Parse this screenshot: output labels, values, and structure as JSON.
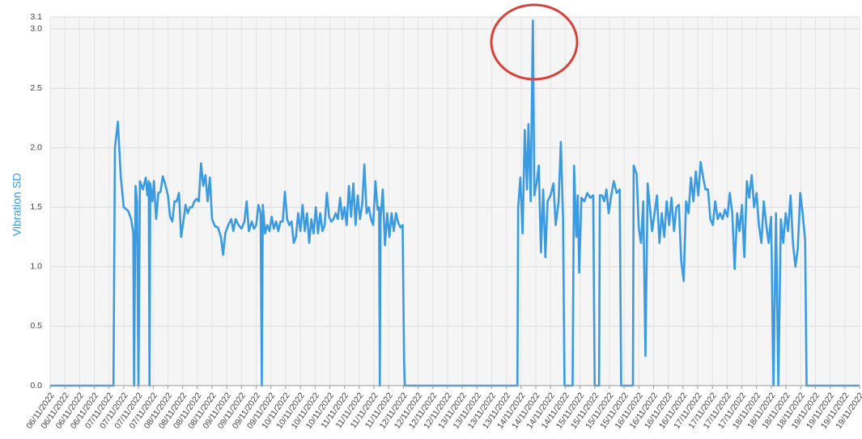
{
  "chart_data": {
    "type": "line",
    "y_label": "Vibration SD",
    "xlim": [
      0,
      55
    ],
    "ylim": [
      0,
      3.1
    ],
    "yticks": [
      {
        "value": 0,
        "label": "0.0"
      },
      0.5,
      {
        "value": 1,
        "label": "1.0"
      },
      1.5,
      {
        "value": 2,
        "label": "2.0"
      },
      2.5,
      {
        "value": 3,
        "label": "3.0"
      },
      3.1
    ],
    "xticks": [
      {
        "value": 0,
        "label": "06/11/2022"
      },
      {
        "value": 1,
        "label": "06/11/2022"
      },
      {
        "value": 2,
        "label": "06/11/2022"
      },
      {
        "value": 3,
        "label": "06/11/2022"
      },
      {
        "value": 4,
        "label": "07/11/2022"
      },
      {
        "value": 5,
        "label": "07/11/2022"
      },
      {
        "value": 6,
        "label": "07/11/2022"
      },
      {
        "value": 7,
        "label": "07/11/2022"
      },
      {
        "value": 8,
        "label": "08/11/2022"
      },
      {
        "value": 9,
        "label": "08/11/2022"
      },
      {
        "value": 10,
        "label": "08/11/2022"
      },
      {
        "value": 11,
        "label": "08/11/2022"
      },
      {
        "value": 12,
        "label": "09/11/2022"
      },
      {
        "value": 13,
        "label": "09/11/2022"
      },
      {
        "value": 14,
        "label": "09/11/2022"
      },
      {
        "value": 15,
        "label": "09/11/2022"
      },
      {
        "value": 16,
        "label": "10/11/2022"
      },
      {
        "value": 17,
        "label": "10/11/2022"
      },
      {
        "value": 18,
        "label": "10/11/2022"
      },
      {
        "value": 19,
        "label": "10/11/2022"
      },
      {
        "value": 20,
        "label": "11/11/2022"
      },
      {
        "value": 21,
        "label": "11/11/2022"
      },
      {
        "value": 22,
        "label": "11/11/2022"
      },
      {
        "value": 23,
        "label": "11/11/2022"
      },
      {
        "value": 24,
        "label": "12/11/2022"
      },
      {
        "value": 25,
        "label": "12/11/2022"
      },
      {
        "value": 26,
        "label": "12/11/2022"
      },
      {
        "value": 27,
        "label": "12/11/2022"
      },
      {
        "value": 28,
        "label": "13/11/2022"
      },
      {
        "value": 29,
        "label": "13/11/2022"
      },
      {
        "value": 30,
        "label": "13/11/2022"
      },
      {
        "value": 31,
        "label": "13/11/2022"
      },
      {
        "value": 32,
        "label": "14/11/2022"
      },
      {
        "value": 33,
        "label": "14/11/2022"
      },
      {
        "value": 34,
        "label": "14/11/2022"
      },
      {
        "value": 35,
        "label": "14/11/2022"
      },
      {
        "value": 36,
        "label": "15/11/2022"
      },
      {
        "value": 37,
        "label": "15/11/2022"
      },
      {
        "value": 38,
        "label": "15/11/2022"
      },
      {
        "value": 39,
        "label": "15/11/2022"
      },
      {
        "value": 40,
        "label": "16/11/2022"
      },
      {
        "value": 41,
        "label": "16/11/2022"
      },
      {
        "value": 42,
        "label": "16/11/2022"
      },
      {
        "value": 43,
        "label": "16/11/2022"
      },
      {
        "value": 44,
        "label": "17/11/2022"
      },
      {
        "value": 45,
        "label": "17/11/2022"
      },
      {
        "value": 46,
        "label": "17/11/2022"
      },
      {
        "value": 47,
        "label": "17/11/2022"
      },
      {
        "value": 48,
        "label": "18/11/2022"
      },
      {
        "value": 49,
        "label": "18/11/2022"
      },
      {
        "value": 50,
        "label": "18/11/2022"
      },
      {
        "value": 51,
        "label": "18/11/2022"
      },
      {
        "value": 52,
        "label": "19/11/2022"
      },
      {
        "value": 53,
        "label": "19/11/2022"
      },
      {
        "value": 54,
        "label": "19/11/2022"
      },
      {
        "value": 55,
        "label": "19/11/2022"
      }
    ],
    "grid": true,
    "series": [
      {
        "color": "#3b9be0",
        "x": [
          0,
          4.3,
          4.4,
          4.6,
          4.8,
          5.0,
          5.3,
          5.5,
          5.65,
          5.7,
          5.8,
          5.9,
          6.0,
          6.1,
          6.3,
          6.5,
          6.6,
          6.7,
          6.75,
          6.8,
          6.95,
          7.05,
          7.2,
          7.35,
          7.5,
          7.65,
          7.8,
          8.0,
          8.15,
          8.3,
          8.45,
          8.6,
          8.75,
          8.9,
          9.05,
          9.2,
          9.35,
          9.5,
          9.65,
          9.8,
          9.95,
          10.1,
          10.25,
          10.4,
          10.55,
          10.7,
          10.85,
          11.0,
          11.2,
          11.4,
          11.6,
          11.75,
          11.9,
          12.1,
          12.3,
          12.45,
          12.6,
          12.8,
          13.0,
          13.2,
          13.35,
          13.5,
          13.7,
          13.85,
          14.0,
          14.15,
          14.3,
          14.38,
          14.45,
          14.6,
          14.75,
          14.9,
          15.05,
          15.2,
          15.35,
          15.5,
          15.65,
          15.8,
          15.95,
          16.1,
          16.25,
          16.4,
          16.55,
          16.7,
          16.85,
          17.0,
          17.15,
          17.3,
          17.45,
          17.6,
          17.75,
          17.9,
          18.05,
          18.2,
          18.35,
          18.5,
          18.65,
          18.8,
          18.95,
          19.1,
          19.25,
          19.4,
          19.55,
          19.7,
          19.85,
          20.0,
          20.15,
          20.3,
          20.45,
          20.6,
          20.75,
          20.9,
          21.05,
          21.2,
          21.35,
          21.5,
          21.65,
          21.8,
          21.95,
          22.1,
          22.25,
          22.35,
          22.4,
          22.45,
          22.6,
          22.75,
          22.9,
          23.05,
          23.2,
          23.35,
          23.5,
          23.65,
          23.8,
          23.95,
          24.05,
          24.1,
          31.75,
          31.8,
          31.95,
          32.1,
          32.25,
          32.4,
          32.5,
          32.65,
          32.8,
          32.9,
          33.05,
          33.2,
          33.35,
          33.5,
          33.65,
          33.8,
          34.0,
          34.2,
          34.35,
          34.55,
          34.7,
          34.85,
          34.95,
          35.5,
          35.6,
          35.75,
          35.85,
          35.95,
          36.1,
          36.3,
          36.5,
          36.7,
          36.9,
          37.0,
          37.3,
          37.35,
          37.5,
          37.65,
          37.8,
          37.95,
          38.1,
          38.3,
          38.5,
          38.7,
          38.8,
          39.6,
          39.65,
          39.85,
          40.0,
          40.15,
          40.3,
          40.45,
          40.6,
          40.75,
          40.9,
          41.07,
          41.23,
          41.4,
          41.56,
          41.73,
          41.89,
          42.06,
          42.22,
          42.39,
          42.55,
          42.72,
          42.88,
          43.05,
          43.21,
          43.38,
          43.54,
          43.71,
          43.87,
          44.04,
          44.2,
          44.37,
          44.53,
          44.7,
          44.86,
          45.03,
          45.19,
          45.36,
          45.52,
          45.69,
          45.85,
          46.02,
          46.18,
          46.35,
          46.51,
          46.68,
          46.84,
          47.01,
          47.17,
          47.34,
          47.5,
          47.67,
          47.83,
          48.0,
          48.16,
          48.33,
          48.49,
          48.66,
          48.82,
          48.99,
          49.15,
          49.32,
          49.48,
          49.65,
          49.81,
          49.98,
          50.14,
          50.31,
          50.47,
          50.64,
          50.8,
          50.97,
          51.13,
          51.3,
          51.4,
          55
        ],
        "values": [
          0,
          0,
          2.0,
          2.22,
          1.75,
          1.5,
          1.47,
          1.4,
          1.28,
          0,
          1.68,
          1.55,
          0,
          1.72,
          1.65,
          1.75,
          1.6,
          1.72,
          0,
          1.7,
          1.55,
          1.72,
          1.4,
          1.62,
          1.63,
          1.76,
          1.7,
          1.6,
          1.42,
          1.38,
          1.55,
          1.55,
          1.62,
          1.25,
          1.38,
          1.52,
          1.45,
          1.5,
          1.5,
          1.55,
          1.57,
          1.55,
          1.87,
          1.68,
          1.77,
          1.55,
          1.75,
          1.4,
          1.34,
          1.33,
          1.25,
          1.1,
          1.28,
          1.35,
          1.4,
          1.3,
          1.4,
          1.35,
          1.32,
          1.38,
          1.55,
          1.3,
          1.38,
          1.32,
          1.35,
          1.52,
          1.45,
          0,
          1.52,
          1.28,
          1.35,
          1.3,
          1.42,
          1.32,
          1.38,
          1.3,
          1.38,
          1.38,
          1.63,
          1.4,
          1.35,
          1.38,
          1.2,
          1.25,
          1.45,
          1.3,
          1.52,
          1.3,
          1.45,
          1.2,
          1.4,
          1.28,
          1.5,
          1.28,
          1.45,
          1.3,
          1.35,
          1.62,
          1.42,
          1.38,
          1.4,
          1.45,
          1.4,
          1.58,
          1.4,
          1.5,
          1.35,
          1.68,
          1.42,
          1.7,
          1.35,
          1.6,
          1.4,
          1.52,
          1.86,
          1.45,
          1.5,
          1.4,
          1.35,
          1.72,
          1.48,
          1.5,
          0,
          1.4,
          1.65,
          1.18,
          1.45,
          1.25,
          1.45,
          1.3,
          1.45,
          1.37,
          1.33,
          1.35,
          0.2,
          0,
          0,
          1.5,
          1.75,
          1.28,
          2.15,
          1.65,
          2.2,
          1.55,
          3.07,
          1.6,
          1.7,
          1.85,
          1.12,
          1.65,
          1.08,
          1.55,
          1.6,
          1.7,
          1.35,
          1.55,
          2.05,
          1.4,
          0,
          0,
          1.85,
          1.25,
          1.6,
          0.95,
          1.58,
          1.55,
          1.62,
          1.58,
          1.6,
          0,
          0,
          1.6,
          1.6,
          1.55,
          1.65,
          1.45,
          1.58,
          1.72,
          1.62,
          1.65,
          0,
          0,
          1.85,
          1.78,
          1.32,
          1.2,
          1.55,
          0.25,
          1.7,
          1.5,
          1.3,
          1.45,
          1.6,
          1.2,
          1.45,
          1.25,
          1.55,
          1.35,
          1.58,
          1.3,
          1.5,
          1.52,
          1.05,
          0.88,
          1.55,
          1.45,
          1.75,
          1.55,
          1.8,
          1.6,
          1.88,
          1.75,
          1.65,
          1.65,
          1.4,
          1.35,
          1.55,
          1.4,
          1.45,
          1.4,
          1.48,
          1.42,
          1.62,
          1.45,
          0.98,
          1.45,
          1.3,
          1.52,
          1.08,
          1.72,
          1.58,
          1.77,
          1.5,
          1.62,
          1.35,
          1.2,
          1.55,
          1.35,
          1.2,
          1.42,
          0,
          1.45,
          0,
          1.4,
          1.2,
          1.45,
          1.3,
          1.6,
          1.2,
          1.0,
          1.15,
          1.62,
          1.45,
          1.22,
          0,
          0
        ]
      }
    ]
  }
}
